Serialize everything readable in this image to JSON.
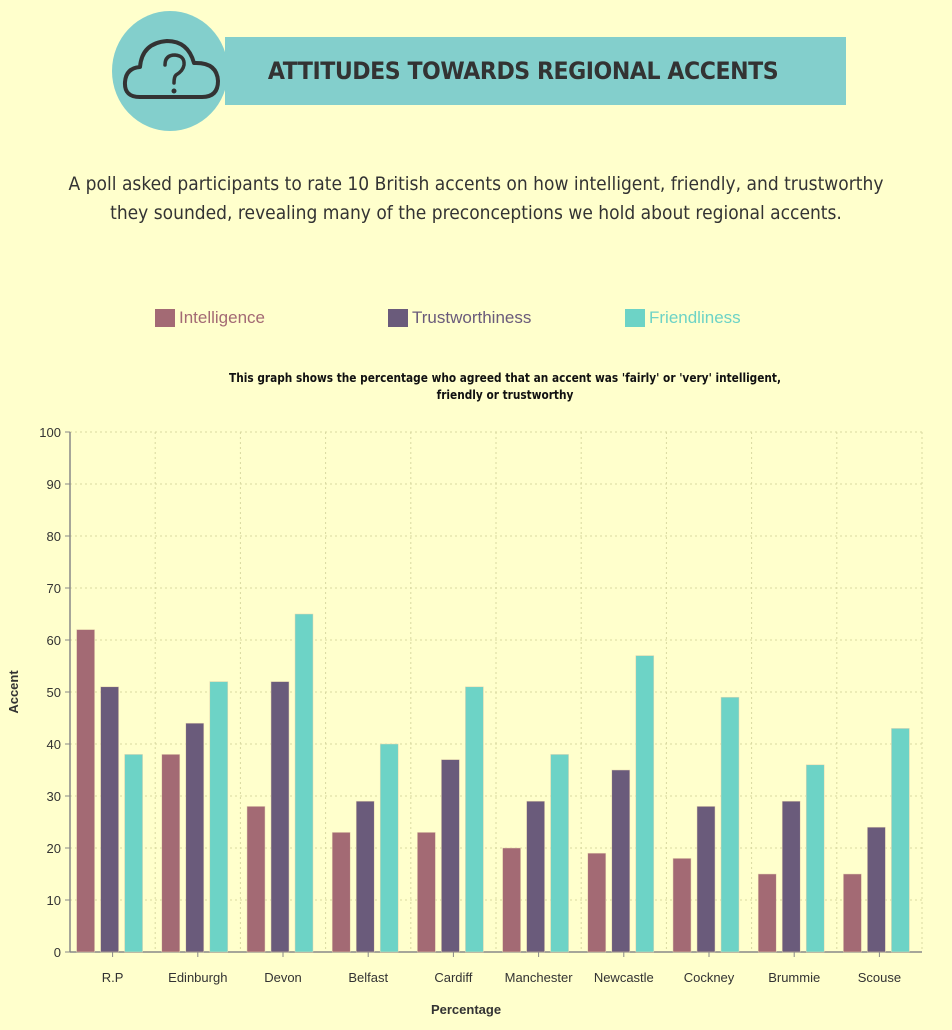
{
  "header": {
    "title": "ATTITUDES TOWARDS REGIONAL ACCENTS",
    "icon": "cloud-question-icon",
    "intro": "A poll asked participants to rate 10 British accents on how intelligent, friendly, and trustworthy they sounded, revealing many of the preconceptions we hold about regional accents."
  },
  "colors": {
    "background": "#ffffcc",
    "banner": "#83cfcc",
    "Intelligence": "#a36a74",
    "Trustworthiness": "#6a5b7b",
    "Friendliness": "#6dd3c6"
  },
  "legend": [
    "Intelligence",
    "Trustworthiness",
    "Friendliness"
  ],
  "chart_data": {
    "type": "bar",
    "title": "This graph shows the percentage who agreed that an accent was 'fairly' or 'very' intelligent, friendly or trustworthy",
    "xlabel": "Percentage",
    "ylabel": "Accent",
    "ylim": [
      0,
      100
    ],
    "yticks": [
      "0",
      "10",
      "20",
      "30",
      "40",
      "50",
      "60",
      "70",
      "80",
      "90",
      "100"
    ],
    "grid": true,
    "legend_position": "top",
    "categories": [
      "R.P",
      "Edinburgh",
      "Devon",
      "Belfast",
      "Cardiff",
      "Manchester",
      "Newcastle",
      "Cockney",
      "Brummie",
      "Scouse"
    ],
    "series": [
      {
        "name": "Intelligence",
        "values": [
          62,
          38,
          28,
          23,
          23,
          20,
          19,
          18,
          15,
          15
        ]
      },
      {
        "name": "Trustworthiness",
        "values": [
          51,
          44,
          52,
          29,
          37,
          29,
          35,
          28,
          29,
          24
        ]
      },
      {
        "name": "Friendliness",
        "values": [
          38,
          52,
          65,
          40,
          51,
          38,
          57,
          49,
          36,
          43
        ]
      }
    ]
  }
}
